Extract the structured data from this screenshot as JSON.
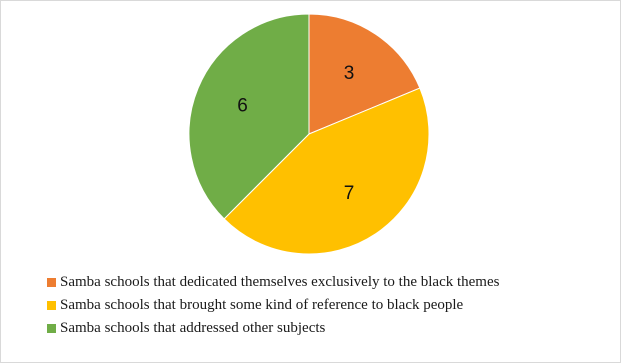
{
  "chart_data": {
    "type": "pie",
    "categories": [
      "Samba schools that dedicated themselves exclusively to the black themes",
      "Samba schools that brought some kind of reference to black people",
      "Samba schools that addressed other subjects"
    ],
    "values": [
      3,
      7,
      6
    ],
    "data_labels": [
      "3",
      "7",
      "6"
    ],
    "colors": [
      "#ed7d31",
      "#ffc000",
      "#70ad47"
    ],
    "start_angle_deg": 0,
    "direction": "clockwise",
    "legend_position": "bottom-left"
  }
}
